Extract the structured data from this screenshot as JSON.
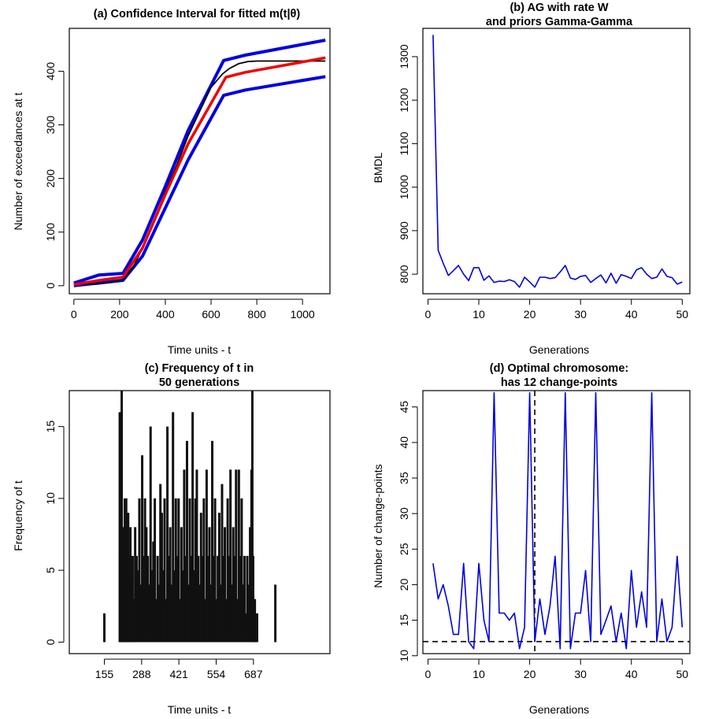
{
  "chart_data": [
    {
      "type": "line",
      "title": "(a) Confidence Interval for fitted m(t|θ)",
      "xlabel": "Time units - t",
      "ylabel": "Number of exceedances at t",
      "xlim": [
        -20,
        1120
      ],
      "ylim": [
        -15,
        480
      ],
      "xticks": [
        0,
        200,
        400,
        600,
        800,
        1000
      ],
      "yticks": [
        0,
        100,
        200,
        300,
        400
      ],
      "series": [
        {
          "color": "#0000e0",
          "width": 4,
          "x": [
            0,
            110,
            215,
            300,
            400,
            500,
            655,
            750,
            1100
          ],
          "y": [
            5,
            20,
            23,
            85,
            185,
            290,
            420,
            430,
            458
          ]
        },
        {
          "color": "#0000e0",
          "width": 4,
          "x": [
            0,
            110,
            215,
            300,
            400,
            500,
            655,
            750,
            1100
          ],
          "y": [
            0,
            5,
            10,
            55,
            145,
            235,
            355,
            365,
            390
          ]
        },
        {
          "color": "#000000",
          "width": 1.8,
          "x": [
            0,
            50,
            100,
            150,
            200,
            215,
            260,
            300,
            350,
            400,
            450,
            500,
            550,
            600,
            650,
            680,
            720,
            760,
            800,
            1100
          ],
          "y": [
            2,
            3,
            3,
            6,
            10,
            12,
            35,
            70,
            120,
            175,
            225,
            280,
            325,
            370,
            395,
            405,
            414,
            418,
            419,
            419
          ]
        },
        {
          "color": "#ee0000",
          "width": 3.5,
          "x": [
            0,
            110,
            215,
            300,
            400,
            500,
            665,
            750,
            1100
          ],
          "y": [
            2,
            10,
            16,
            70,
            170,
            265,
            389,
            398,
            425
          ]
        }
      ]
    },
    {
      "type": "line",
      "title": "(b) AG with rate W",
      "subtitle": "and priors Gamma-Gamma",
      "xlabel": "Generations",
      "ylabel": "BMDL",
      "xlim": [
        -1,
        51.5
      ],
      "ylim": [
        755,
        1365
      ],
      "xticks": [
        0,
        10,
        20,
        30,
        40,
        50
      ],
      "yticks": [
        800,
        900,
        1000,
        1100,
        1200,
        1300
      ],
      "series": [
        {
          "color": "#0000dd",
          "width": 1.6,
          "x": [
            1,
            2,
            3,
            4,
            5,
            6,
            7,
            8,
            9,
            10,
            11,
            12,
            13,
            14,
            15,
            16,
            17,
            18,
            19,
            20,
            21,
            22,
            23,
            24,
            25,
            26,
            27,
            28,
            29,
            30,
            31,
            32,
            33,
            34,
            35,
            36,
            37,
            38,
            39,
            40,
            41,
            42,
            43,
            44,
            45,
            46,
            47,
            48,
            49,
            50
          ],
          "y": [
            1350,
            855,
            825,
            797,
            808,
            820,
            800,
            785,
            815,
            815,
            786,
            796,
            781,
            784,
            783,
            787,
            783,
            770,
            793,
            782,
            770,
            793,
            793,
            790,
            792,
            805,
            820,
            791,
            788,
            795,
            797,
            781,
            790,
            798,
            780,
            802,
            779,
            799,
            795,
            790,
            810,
            815,
            800,
            790,
            793,
            812,
            795,
            792,
            777,
            782
          ]
        }
      ]
    },
    {
      "type": "bar",
      "title": "(c) Frequency of t in",
      "subtitle": "50 generations",
      "xlabel": "Time units - t",
      "ylabel": "Frequency of t",
      "xlim": [
        30,
        960
      ],
      "ylim": [
        -0.8,
        17.5
      ],
      "xticks": [
        155,
        288,
        421,
        554,
        687
      ],
      "yticks": [
        0,
        5,
        10,
        15
      ],
      "bars": {
        "x": [
          155,
          210,
          213,
          215,
          217,
          220,
          222,
          225,
          228,
          230,
          233,
          236,
          240,
          244,
          248,
          252,
          256,
          260,
          265,
          270,
          275,
          280,
          285,
          290,
          295,
          300,
          305,
          310,
          315,
          320,
          325,
          330,
          335,
          340,
          345,
          350,
          355,
          360,
          365,
          370,
          375,
          380,
          385,
          390,
          395,
          400,
          405,
          410,
          415,
          420,
          425,
          430,
          435,
          440,
          445,
          450,
          455,
          460,
          465,
          470,
          475,
          480,
          485,
          490,
          495,
          500,
          505,
          510,
          515,
          520,
          525,
          530,
          535,
          540,
          545,
          550,
          555,
          560,
          565,
          570,
          575,
          580,
          585,
          590,
          595,
          600,
          605,
          610,
          615,
          620,
          625,
          630,
          635,
          640,
          645,
          650,
          655,
          660,
          665,
          670,
          675,
          680,
          683,
          686,
          689,
          692,
          695,
          700,
          765
        ],
        "y": [
          2,
          16,
          6,
          13,
          17.5,
          2,
          8,
          4,
          10,
          3,
          10,
          6,
          9,
          6,
          8,
          4,
          6,
          3,
          8,
          6,
          5,
          10,
          4,
          13,
          6,
          10,
          8,
          6,
          4,
          15,
          5,
          7,
          10,
          3,
          6,
          4,
          11,
          9,
          5,
          10,
          3,
          15,
          6,
          8,
          4,
          16,
          5,
          10,
          6,
          10,
          3,
          8,
          5,
          12,
          6,
          14,
          4,
          10,
          6,
          16,
          5,
          10,
          12,
          6,
          4,
          9,
          6,
          10,
          3,
          12,
          6,
          8,
          4,
          14,
          6,
          10,
          3,
          6,
          9,
          4,
          11,
          6,
          8,
          3,
          10,
          6,
          12,
          4,
          8,
          6,
          12,
          3,
          12,
          6,
          10,
          4,
          6,
          2,
          6,
          4,
          8,
          12,
          17.5,
          6,
          2,
          3,
          2,
          2,
          4
        ]
      }
    },
    {
      "type": "line",
      "title": "(d) Optimal chromosome:",
      "subtitle": "has 12 change-points",
      "xlabel": "Generations",
      "ylabel": "Number of change-points",
      "xlim": [
        -1,
        51.5
      ],
      "ylim": [
        10.3,
        47.3
      ],
      "xticks": [
        0,
        10,
        20,
        30,
        40,
        50
      ],
      "yticks": [
        10,
        15,
        20,
        25,
        30,
        35,
        40,
        45
      ],
      "hline": 12,
      "vline": 21,
      "series": [
        {
          "color": "#0000dd",
          "width": 1.6,
          "x": [
            1,
            2,
            3,
            4,
            5,
            6,
            7,
            8,
            9,
            10,
            11,
            12,
            13,
            14,
            15,
            16,
            17,
            18,
            19,
            20,
            21,
            22,
            23,
            24,
            25,
            26,
            27,
            28,
            29,
            30,
            31,
            32,
            33,
            34,
            35,
            36,
            37,
            38,
            39,
            40,
            41,
            42,
            43,
            44,
            45,
            46,
            47,
            48,
            49,
            50
          ],
          "y": [
            23,
            18,
            20,
            17,
            13,
            13,
            23,
            12,
            11,
            23,
            15,
            12,
            47,
            16,
            16,
            15,
            16,
            11,
            14,
            47,
            12,
            18,
            13,
            17,
            24,
            11,
            47,
            11,
            16,
            16,
            22,
            12,
            47,
            13,
            15,
            17,
            12,
            16,
            11,
            22,
            14,
            19,
            14,
            47,
            12,
            18,
            12,
            14,
            24,
            14
          ]
        }
      ]
    }
  ]
}
